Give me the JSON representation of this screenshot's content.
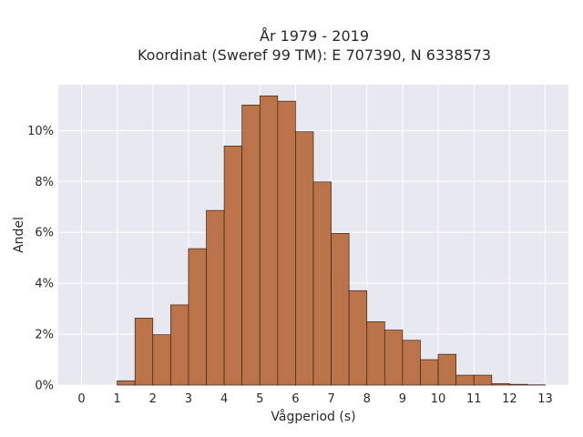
{
  "chart_data": {
    "type": "bar",
    "title": "År 1979 - 2019",
    "subtitle": "Koordinat (Sweref 99 TM): E 707390, N 6338573",
    "xlabel": "Vågperiod (s)",
    "ylabel": "Andel",
    "bin_width": 0.5,
    "x_ticks": [
      "0",
      "1",
      "2",
      "3",
      "4",
      "5",
      "6",
      "7",
      "8",
      "9",
      "10",
      "11",
      "12",
      "13"
    ],
    "y_ticks": [
      "0%",
      "2%",
      "4%",
      "6%",
      "8%",
      "10%"
    ],
    "y_tick_values": [
      0,
      2,
      4,
      6,
      8,
      10
    ],
    "xlim": [
      -0.65,
      13.65
    ],
    "ylim": [
      0,
      11.8
    ],
    "bin_starts": [
      1.0,
      1.5,
      2.0,
      2.5,
      3.0,
      3.5,
      4.0,
      4.5,
      5.0,
      5.5,
      6.0,
      6.5,
      7.0,
      7.5,
      8.0,
      8.5,
      9.0,
      9.5,
      10.0,
      10.5,
      11.0,
      11.5,
      12.0,
      12.5
    ],
    "values": [
      0.17,
      2.63,
      1.98,
      3.15,
      5.36,
      6.86,
      9.39,
      11.0,
      11.36,
      11.15,
      9.95,
      7.98,
      5.96,
      3.71,
      2.49,
      2.16,
      1.76,
      1.0,
      1.21,
      0.39,
      0.39,
      0.06,
      0.03,
      0.01
    ],
    "bar_color": "#bb7449",
    "plot_background": "#e8e8f0",
    "grid": true
  }
}
